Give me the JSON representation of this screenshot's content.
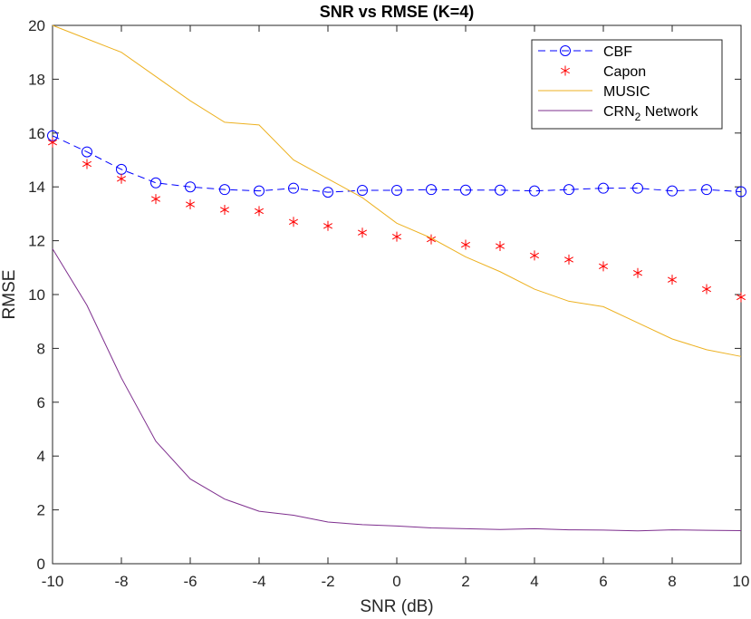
{
  "chart_data": {
    "type": "line",
    "title": "SNR vs RMSE (K=4)",
    "xlabel": "SNR (dB)",
    "ylabel": "RMSE",
    "xlim": [
      -10,
      10
    ],
    "ylim": [
      0,
      20
    ],
    "xticks": [
      -10,
      -8,
      -6,
      -4,
      -2,
      0,
      2,
      4,
      6,
      8,
      10
    ],
    "yticks": [
      0,
      2,
      4,
      6,
      8,
      10,
      12,
      14,
      16,
      18,
      20
    ],
    "grid": false,
    "legend_position": "top-right",
    "x": [
      -10,
      -9,
      -8,
      -7,
      -6,
      -5,
      -4,
      -3,
      -2,
      -1,
      0,
      1,
      2,
      3,
      4,
      5,
      6,
      7,
      8,
      9,
      10
    ],
    "series": [
      {
        "name": "CBF",
        "color": "#0000ff",
        "style": "dashed",
        "marker": "circle",
        "values": [
          15.9,
          15.3,
          14.65,
          14.15,
          14.0,
          13.9,
          13.85,
          13.95,
          13.8,
          13.87,
          13.87,
          13.9,
          13.88,
          13.88,
          13.85,
          13.9,
          13.95,
          13.95,
          13.85,
          13.9,
          13.82
        ]
      },
      {
        "name": "Capon",
        "color": "#ff0000",
        "style": "none",
        "marker": "asterisk",
        "values": [
          15.65,
          14.85,
          14.3,
          13.55,
          13.35,
          13.15,
          13.1,
          12.7,
          12.55,
          12.3,
          12.15,
          12.05,
          11.85,
          11.8,
          11.45,
          11.3,
          11.05,
          10.8,
          10.55,
          10.2,
          9.9
        ]
      },
      {
        "name": "MUSIC",
        "color": "#edb120",
        "style": "solid",
        "marker": "none",
        "values": [
          20.0,
          19.5,
          19.0,
          18.1,
          17.2,
          16.4,
          16.3,
          15.0,
          14.3,
          13.6,
          12.65,
          12.1,
          11.4,
          10.85,
          10.2,
          9.75,
          9.55,
          8.95,
          8.35,
          7.95,
          7.7
        ]
      },
      {
        "name": "CRN",
        "name_sub": "2",
        "name_suffix": " Network",
        "color": "#7e2f8e",
        "style": "solid",
        "marker": "none",
        "values": [
          11.7,
          9.6,
          6.9,
          4.55,
          3.15,
          2.4,
          1.95,
          1.8,
          1.55,
          1.45,
          1.4,
          1.33,
          1.3,
          1.27,
          1.3,
          1.26,
          1.25,
          1.22,
          1.26,
          1.24,
          1.23
        ]
      }
    ]
  }
}
